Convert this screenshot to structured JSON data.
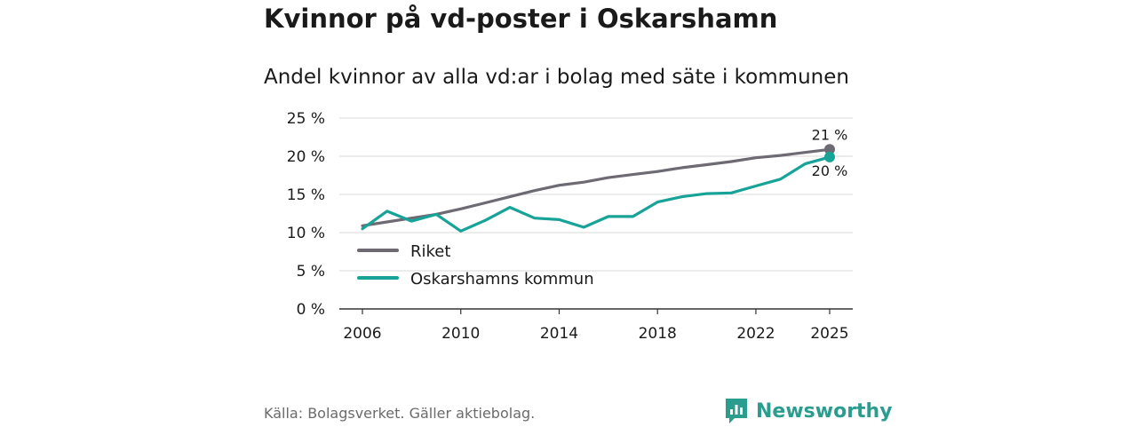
{
  "title": "Kvinnor på vd-poster i Oskarshamn",
  "subtitle": "Andel kvinnor av alla vd:ar i bolag med säte i kommunen",
  "source": "Källa: Bolagsverket. Gäller aktiebolag.",
  "brand": "Newsworthy",
  "colors": {
    "riket": "#6e6a73",
    "kommun": "#17a398",
    "brand": "#2a9d8f"
  },
  "chart_data": {
    "type": "line",
    "title": "Andel kvinnor av alla vd:ar i bolag med säte i kommunen",
    "xlabel": "",
    "ylabel": "",
    "xlim": [
      2006,
      2025
    ],
    "ylim": [
      0,
      25
    ],
    "x_ticks": [
      2006,
      2010,
      2014,
      2018,
      2022,
      2025
    ],
    "x_tick_labels": [
      "2006",
      "2010",
      "2014",
      "2018",
      "2022",
      "2025"
    ],
    "y_ticks": [
      0,
      5,
      10,
      15,
      20,
      25
    ],
    "y_tick_labels": [
      "0 %",
      "5 %",
      "10 %",
      "15 %",
      "20 %",
      "25 %"
    ],
    "grid": true,
    "legend_position": "bottom-left",
    "x": [
      2006,
      2007,
      2008,
      2009,
      2010,
      2011,
      2012,
      2013,
      2014,
      2015,
      2016,
      2017,
      2018,
      2019,
      2020,
      2021,
      2022,
      2023,
      2024,
      2025
    ],
    "series": [
      {
        "name": "Riket",
        "color": "#6e6a73",
        "end_label": "21 %",
        "values": [
          10.9,
          11.4,
          11.9,
          12.4,
          13.1,
          13.9,
          14.7,
          15.5,
          16.2,
          16.6,
          17.2,
          17.6,
          18.0,
          18.5,
          18.9,
          19.3,
          19.8,
          20.1,
          20.5,
          20.9
        ]
      },
      {
        "name": "Oskarshamns kommun",
        "color": "#17a398",
        "end_label": "20 %",
        "values": [
          10.5,
          12.8,
          11.5,
          12.4,
          10.2,
          11.6,
          13.3,
          11.9,
          11.7,
          10.7,
          12.1,
          12.1,
          14.0,
          14.7,
          15.1,
          15.2,
          16.1,
          17.0,
          19.0,
          19.9
        ]
      }
    ]
  }
}
